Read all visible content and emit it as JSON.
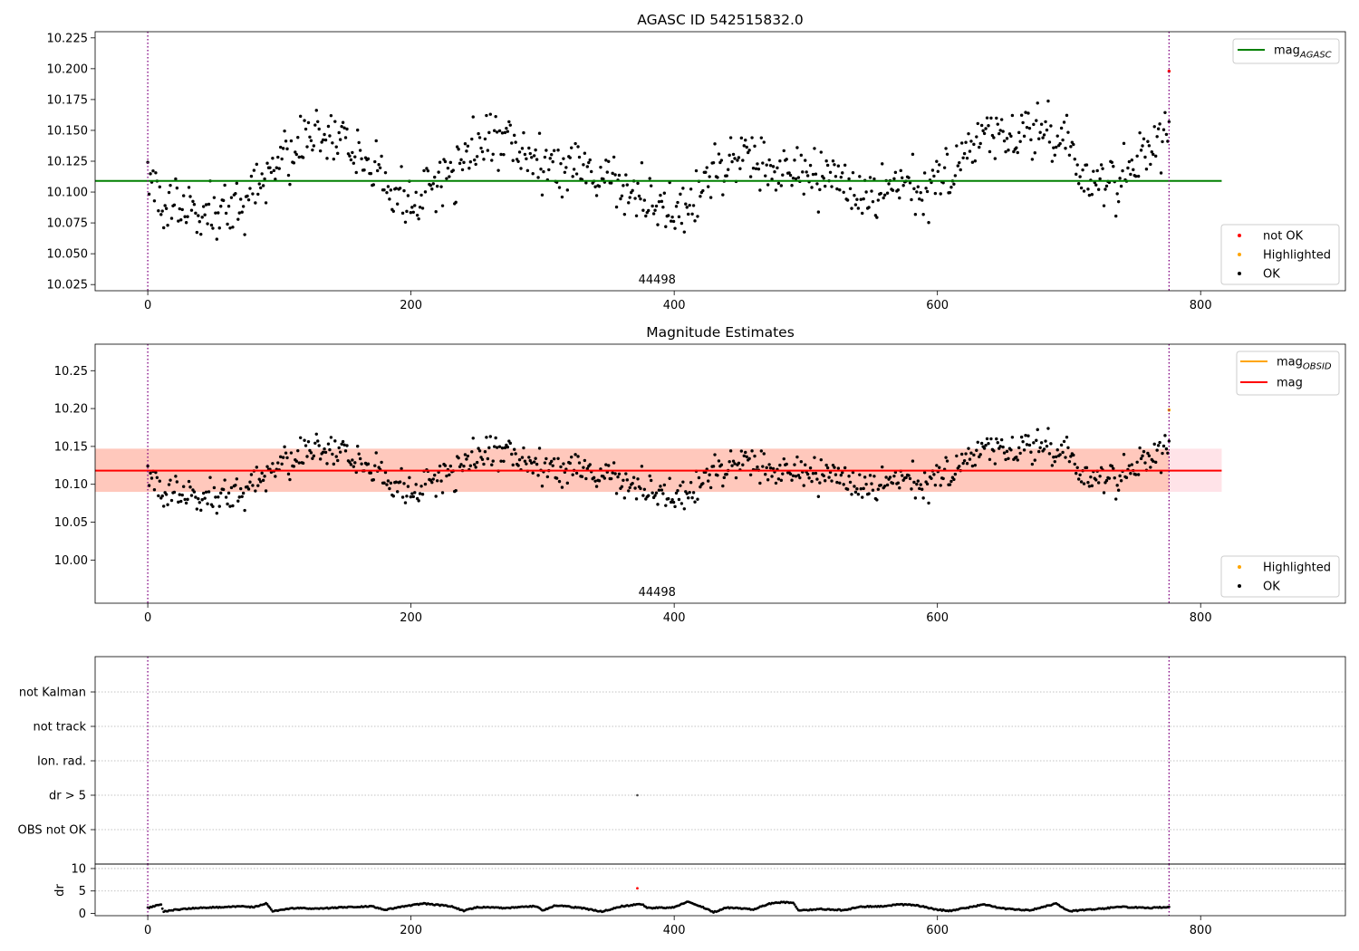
{
  "chart_data": [
    {
      "panel": "agasc",
      "type": "scatter",
      "title": "AGASC ID 542515832.0",
      "obsid_label": "44498",
      "xlim": [
        -40,
        910
      ],
      "ylim": [
        10.02,
        10.23
      ],
      "xticks": [
        0,
        200,
        400,
        600,
        800
      ],
      "yticks": [
        10.025,
        10.05,
        10.075,
        10.1,
        10.125,
        10.15,
        10.175,
        10.2,
        10.225
      ],
      "ytick_labels": [
        "10.025",
        "10.050",
        "10.075",
        "10.100",
        "10.125",
        "10.150",
        "10.175",
        "10.200",
        "10.225"
      ],
      "vlines": [
        0,
        776
      ],
      "hline": {
        "name": "mag",
        "sub": "AGASC",
        "y": 10.109,
        "x": [
          -40,
          816
        ],
        "color": "#008000"
      },
      "series": [
        {
          "name": "not OK",
          "color": "#ff0000",
          "x": [
            776
          ],
          "y": [
            10.198
          ]
        },
        {
          "name": "Highlighted",
          "color": "#ffa500",
          "x": [],
          "y": []
        },
        {
          "name": "OK",
          "color": "#000000",
          "curve": {
            "n": 770,
            "x_end": 776,
            "base": 10.12,
            "noise": 0.023,
            "min": 10.048,
            "max": 10.19,
            "knots": [
              [
                0,
                10.105
              ],
              [
                20,
                10.085
              ],
              [
                45,
                10.08
              ],
              [
                70,
                10.085
              ],
              [
                85,
                10.11
              ],
              [
                100,
                10.13
              ],
              [
                130,
                10.148
              ],
              [
                160,
                10.13
              ],
              [
                180,
                10.11
              ],
              [
                200,
                10.085
              ],
              [
                215,
                10.105
              ],
              [
                235,
                10.118
              ],
              [
                255,
                10.145
              ],
              [
                275,
                10.14
              ],
              [
                290,
                10.125
              ],
              [
                310,
                10.12
              ],
              [
                335,
                10.118
              ],
              [
                355,
                10.11
              ],
              [
                370,
                10.1
              ],
              [
                390,
                10.09
              ],
              [
                405,
                10.08
              ],
              [
                425,
                10.11
              ],
              [
                445,
                10.128
              ],
              [
                470,
                10.125
              ],
              [
                490,
                10.118
              ],
              [
                520,
                10.11
              ],
              [
                540,
                10.09
              ],
              [
                565,
                10.108
              ],
              [
                590,
                10.1
              ],
              [
                615,
                10.12
              ],
              [
                640,
                10.15
              ],
              [
                660,
                10.145
              ],
              [
                680,
                10.148
              ],
              [
                700,
                10.14
              ],
              [
                710,
                10.105
              ],
              [
                730,
                10.11
              ],
              [
                750,
                10.12
              ],
              [
                776,
                10.15
              ]
            ]
          }
        }
      ],
      "legend_top": [
        {
          "label": "mag",
          "sub": "AGASC",
          "color": "#008000"
        }
      ],
      "legend_bottom": [
        {
          "label": "not OK",
          "color": "#ff0000"
        },
        {
          "label": "Highlighted",
          "color": "#ffa500"
        },
        {
          "label": "OK",
          "color": "#000000"
        }
      ]
    },
    {
      "panel": "magnitude",
      "type": "scatter",
      "title": "Magnitude Estimates",
      "obsid_label": "44498",
      "xlim": [
        -40,
        910
      ],
      "ylim": [
        9.943,
        10.285
      ],
      "xticks": [
        0,
        200,
        400,
        600,
        800
      ],
      "yticks": [
        10.0,
        10.05,
        10.1,
        10.15,
        10.2,
        10.25
      ],
      "ytick_labels": [
        "10.00",
        "10.05",
        "10.10",
        "10.15",
        "10.20",
        "10.25"
      ],
      "vlines": [
        0,
        776
      ],
      "bands": [
        {
          "name": "pink band",
          "y": [
            10.09,
            10.147
          ],
          "x": [
            -40,
            816
          ],
          "color": "#ffc0cb"
        },
        {
          "name": "orange band",
          "y": [
            10.09,
            10.147
          ],
          "x": [
            -40,
            776
          ],
          "color": "#ffa07a"
        }
      ],
      "hline": {
        "name": "mag",
        "y": 10.118,
        "x": [
          -40,
          816
        ],
        "color": "#ff0000"
      },
      "series": [
        {
          "name": "Highlighted",
          "color": "#ffa500",
          "x": [
            776
          ],
          "y": [
            10.198
          ]
        },
        {
          "name": "OK",
          "color": "#000000",
          "same_as_panel": "agasc"
        }
      ],
      "legend_top": [
        {
          "label": "mag",
          "sub": "OBSID",
          "color": "#ffa500"
        },
        {
          "label": "mag",
          "sub": "",
          "color": "#ff0000"
        }
      ],
      "legend_bottom": [
        {
          "label": "Highlighted",
          "color": "#ffa500"
        },
        {
          "label": "OK",
          "color": "#000000"
        }
      ]
    },
    {
      "panel": "flags",
      "type": "scatter",
      "xlim": [
        -40,
        910
      ],
      "categories": [
        "not Kalman",
        "not track",
        "Ion. rad.",
        "dr > 5",
        "OBS not OK"
      ],
      "vlines": [
        0,
        776
      ],
      "points": [
        {
          "category": "dr > 5",
          "x": 372
        }
      ]
    },
    {
      "panel": "dr",
      "type": "scatter",
      "ylabel": "dr",
      "xlim": [
        -40,
        910
      ],
      "ylim": [
        -0.5,
        11
      ],
      "xticks": [
        0,
        200,
        400,
        600,
        800
      ],
      "yticks": [
        0,
        5,
        10
      ],
      "grid_y": [
        5,
        10
      ],
      "vlines": [
        0,
        776
      ],
      "outlier": {
        "x": 372,
        "y": 5.6,
        "color": "#ff0000"
      },
      "series": {
        "n": 770,
        "x_end": 776,
        "min": 0.15,
        "max": 2.6,
        "knots": [
          [
            0,
            1.2
          ],
          [
            10,
            2.0
          ],
          [
            12,
            0.4
          ],
          [
            20,
            0.8
          ],
          [
            40,
            1.3
          ],
          [
            60,
            1.4
          ],
          [
            65,
            1.6
          ],
          [
            80,
            1.4
          ],
          [
            90,
            2.2
          ],
          [
            95,
            0.5
          ],
          [
            110,
            1.2
          ],
          [
            130,
            1.1
          ],
          [
            170,
            1.6
          ],
          [
            180,
            0.8
          ],
          [
            200,
            1.8
          ],
          [
            210,
            2.2
          ],
          [
            230,
            1.6
          ],
          [
            240,
            0.6
          ],
          [
            250,
            1.4
          ],
          [
            270,
            1.2
          ],
          [
            295,
            1.6
          ],
          [
            300,
            0.7
          ],
          [
            310,
            1.8
          ],
          [
            330,
            1.2
          ],
          [
            345,
            0.4
          ],
          [
            360,
            1.6
          ],
          [
            375,
            2.1
          ],
          [
            380,
            1.2
          ],
          [
            400,
            1.3
          ],
          [
            410,
            2.6
          ],
          [
            420,
            1.6
          ],
          [
            430,
            0.3
          ],
          [
            440,
            1.3
          ],
          [
            460,
            0.9
          ],
          [
            475,
            2.4
          ],
          [
            490,
            2.5
          ],
          [
            495,
            0.6
          ],
          [
            510,
            1.0
          ],
          [
            530,
            0.7
          ],
          [
            540,
            1.5
          ],
          [
            560,
            1.6
          ],
          [
            570,
            2.0
          ],
          [
            585,
            1.8
          ],
          [
            600,
            0.8
          ],
          [
            610,
            0.6
          ],
          [
            625,
            1.4
          ],
          [
            635,
            2.0
          ],
          [
            650,
            1.1
          ],
          [
            670,
            0.7
          ],
          [
            690,
            2.2
          ],
          [
            700,
            0.5
          ],
          [
            720,
            0.9
          ],
          [
            740,
            1.5
          ],
          [
            760,
            1.2
          ],
          [
            776,
            1.4
          ]
        ]
      }
    }
  ]
}
